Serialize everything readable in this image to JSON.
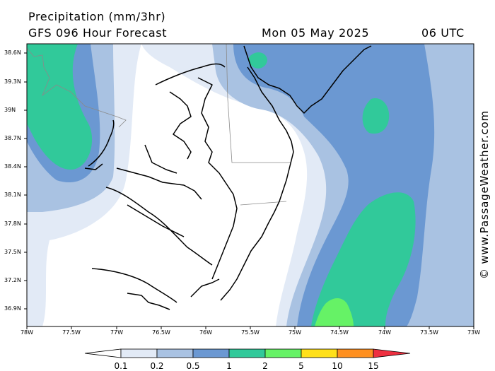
{
  "header": {
    "title": "Precipitation (mm/3hr)",
    "subtitle": "GFS 096 Hour Forecast",
    "date": "Mon 05 May 2025",
    "time": "06 UTC"
  },
  "watermark": "© www.PassageWeather.com",
  "map": {
    "lat_labels": [
      "38.6N",
      "39.3N",
      "39N",
      "38.7N",
      "38.4N",
      "38.1N",
      "37.8N",
      "37.5N",
      "37.2N",
      "36.9N"
    ],
    "lon_labels": [
      "78W",
      "77.5W",
      "77W",
      "76.5W",
      "76W",
      "75.5W",
      "75W",
      "74.5W",
      "74W",
      "73.5W",
      "73W"
    ]
  },
  "colorbar": {
    "labels": [
      "0.1",
      "0.2",
      "0.5",
      "1",
      "2",
      "5",
      "10",
      "15"
    ],
    "colors": [
      "#e2eaf6",
      "#a9c2e2",
      "#6b98d2",
      "#31c99a",
      "#66f266",
      "#ffe01a",
      "#ff9020",
      "#ee3040"
    ]
  }
}
